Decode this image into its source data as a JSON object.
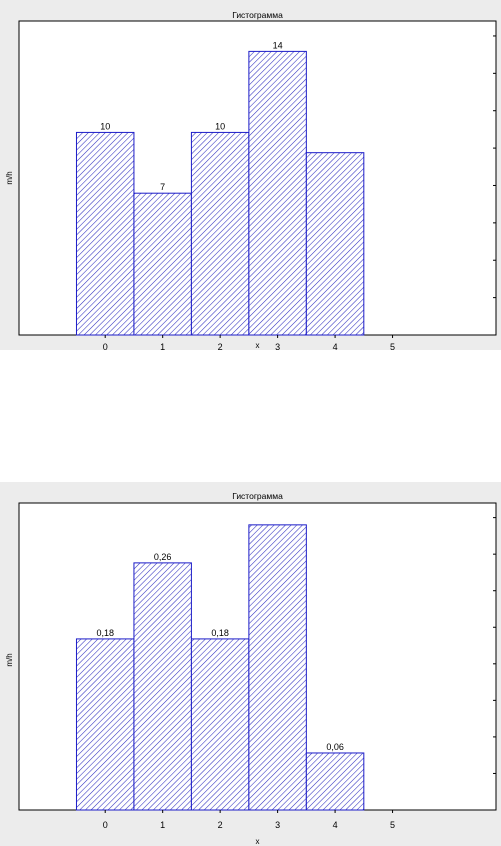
{
  "colors": {
    "frame_bg": "#ececec",
    "plot_bg": "#ffffff",
    "bar_stroke": "#1c1cc8",
    "bar_hatch": "#3030c0"
  },
  "chart_data": [
    {
      "type": "bar",
      "title": "Гистограмма",
      "xlabel": "x",
      "ylabel": "m/h",
      "categories": [
        "0",
        "1",
        "2",
        "3",
        "4"
      ],
      "values": [
        10,
        7,
        10,
        14,
        9
      ],
      "data_labels": [
        "10",
        "7",
        "10",
        "14",
        ""
      ],
      "xticks": [
        "0",
        "1",
        "2",
        "3",
        "4",
        "5"
      ],
      "xlim": [
        -1.5,
        6.8
      ],
      "ylim": [
        0,
        15.5
      ],
      "yticks_count": 8,
      "hatch": true
    },
    {
      "type": "bar",
      "title": "Гистограмма",
      "xlabel": "x",
      "ylabel": "m/h",
      "categories": [
        "0",
        "1",
        "2",
        "3",
        "4"
      ],
      "values": [
        0.18,
        0.26,
        0.18,
        0.3,
        0.06
      ],
      "data_labels": [
        "0,18",
        "0,26",
        "0,18",
        "",
        "0,06"
      ],
      "xticks": [
        "0",
        "1",
        "2",
        "3",
        "4",
        "5"
      ],
      "xlim": [
        -1.5,
        6.8
      ],
      "ylim": [
        0,
        0.323
      ],
      "yticks_count": 8,
      "hatch": true
    }
  ]
}
